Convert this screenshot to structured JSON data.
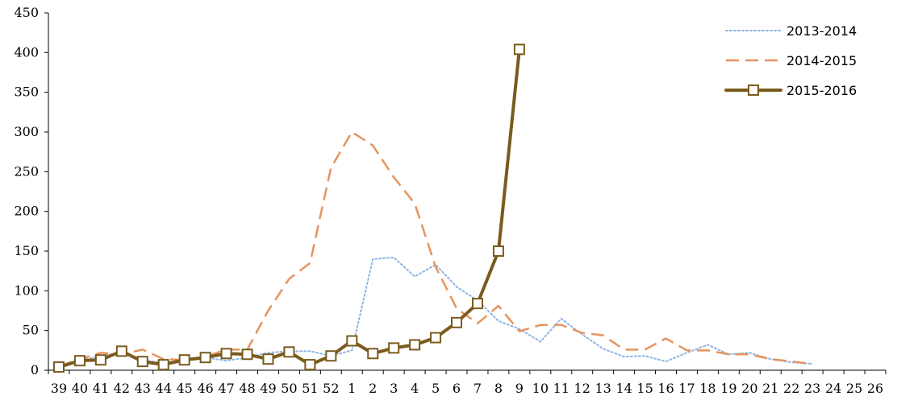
{
  "chart_data": {
    "type": "line",
    "title": "",
    "xlabel": "",
    "ylabel": "",
    "ylim": [
      0,
      450
    ],
    "yticks": [
      0,
      50,
      100,
      150,
      200,
      250,
      300,
      350,
      400,
      450
    ],
    "grid": false,
    "legend_position": "top-right",
    "categories": [
      "39",
      "40",
      "41",
      "42",
      "43",
      "44",
      "45",
      "46",
      "47",
      "48",
      "49",
      "50",
      "51",
      "52",
      "1",
      "2",
      "3",
      "4",
      "5",
      "6",
      "7",
      "8",
      "9",
      "10",
      "11",
      "12",
      "13",
      "14",
      "15",
      "16",
      "17",
      "18",
      "19",
      "20",
      "21",
      "22",
      "23",
      "24",
      "25",
      "26"
    ],
    "series": [
      {
        "name": "2013-2014",
        "style": "dotted",
        "color": "#8eb4e3",
        "values": [
          4,
          12,
          18,
          22,
          12,
          10,
          12,
          16,
          12,
          16,
          22,
          24,
          24,
          18,
          25,
          140,
          142,
          118,
          133,
          105,
          88,
          62,
          52,
          36,
          65,
          45,
          27,
          17,
          18,
          11,
          22,
          32,
          20,
          22,
          14,
          10,
          8,
          null,
          null,
          null
        ]
      },
      {
        "name": "2014-2015",
        "style": "dashed",
        "color": "#e59460",
        "values": [
          5,
          14,
          22,
          20,
          26,
          14,
          13,
          17,
          26,
          26,
          75,
          115,
          135,
          255,
          300,
          283,
          243,
          210,
          130,
          78,
          59,
          81,
          49,
          57,
          57,
          47,
          44,
          26,
          26,
          40,
          25,
          25,
          20,
          20,
          14,
          11,
          8,
          null,
          null,
          null
        ]
      },
      {
        "name": "2015-2016",
        "style": "solid-marker",
        "color": "#7a5b1e",
        "values": [
          4,
          12,
          13,
          24,
          11,
          7,
          13,
          16,
          21,
          20,
          14,
          23,
          7,
          18,
          37,
          21,
          28,
          32,
          41,
          60,
          84,
          150,
          404,
          null,
          null,
          null,
          null,
          null,
          null,
          null,
          null,
          null,
          null,
          null,
          null,
          null,
          null,
          null,
          null,
          null
        ]
      }
    ]
  }
}
